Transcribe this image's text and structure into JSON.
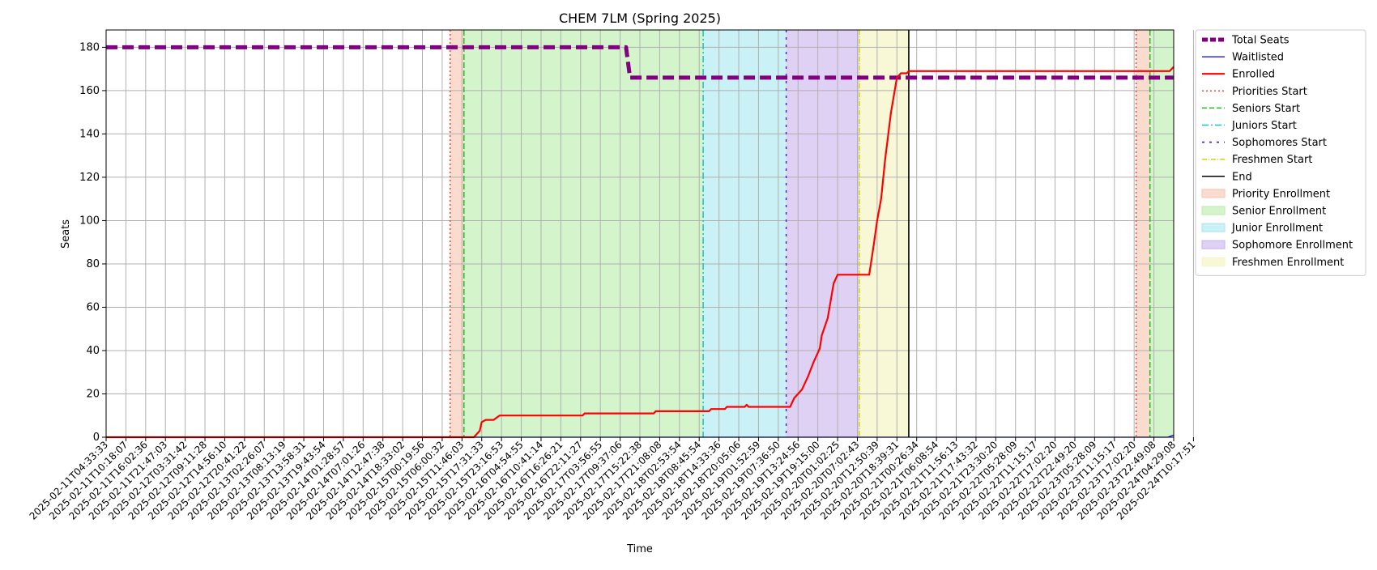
{
  "chart_data": {
    "type": "line",
    "title": "CHEM 7LM (Spring 2025)",
    "xlabel": "Time",
    "ylabel": "Seats",
    "ylim": [
      0,
      188
    ],
    "yticks": [
      0,
      20,
      40,
      60,
      80,
      100,
      120,
      140,
      160,
      180
    ],
    "grid": true,
    "legend_position": "outside-right",
    "x_tick_labels": [
      "2025-02-11T04:33:33",
      "2025-02-11T10:18:07",
      "2025-02-11T16:02:36",
      "2025-02-11T21:47:03",
      "2025-02-12T03:31:42",
      "2025-02-12T09:11:28",
      "2025-02-12T14:56:10",
      "2025-02-12T20:41:22",
      "2025-02-13T02:26:07",
      "2025-02-13T08:13:19",
      "2025-02-13T13:58:31",
      "2025-02-13T19:43:54",
      "2025-02-14T01:28:57",
      "2025-02-14T07:01:26",
      "2025-02-14T12:47:38",
      "2025-02-14T18:33:02",
      "2025-02-15T00:19:56",
      "2025-02-15T06:00:32",
      "2025-02-15T11:46:03",
      "2025-02-15T17:31:33",
      "2025-02-15T23:16:53",
      "2025-02-16T04:54:55",
      "2025-02-16T10:41:14",
      "2025-02-16T16:26:21",
      "2025-02-16T22:11:27",
      "2025-02-17T03:56:55",
      "2025-02-17T09:37:06",
      "2025-02-17T15:22:38",
      "2025-02-17T21:08:08",
      "2025-02-18T02:53:54",
      "2025-02-18T08:45:54",
      "2025-02-18T14:33:36",
      "2025-02-18T20:05:06",
      "2025-02-19T01:52:59",
      "2025-02-19T07:36:50",
      "2025-02-19T13:24:56",
      "2025-02-19T19:15:00",
      "2025-02-20T01:02:25",
      "2025-02-20T07:02:43",
      "2025-02-20T12:50:39",
      "2025-02-20T18:39:31",
      "2025-02-21T00:26:34",
      "2025-02-21T06:08:54",
      "2025-02-21T11:56:13",
      "2025-02-21T17:43:32",
      "2025-02-21T23:30:20",
      "2025-02-22T05:28:09",
      "2025-02-22T11:15:17",
      "2025-02-22T17:02:20",
      "2025-02-22T22:49:20",
      "2025-02-23T05:28:09",
      "2025-02-23T11:15:17",
      "2025-02-23T17:02:20",
      "2025-02-23T22:49:08",
      "2025-02-24T04:29:08",
      "2025-02-24T10:17:51"
    ],
    "series": [
      {
        "name": "Total Seats",
        "style": "dashed-thick",
        "color": "#800080",
        "points": [
          [
            0,
            180
          ],
          [
            26.3,
            180
          ],
          [
            26.5,
            166
          ],
          [
            54,
            166
          ]
        ]
      },
      {
        "name": "Waitlisted",
        "style": "solid-thin",
        "color": "#0000ff",
        "points": [
          [
            0,
            0
          ],
          [
            53.7,
            0
          ],
          [
            54,
            1
          ]
        ]
      },
      {
        "name": "Enrolled",
        "style": "solid",
        "color": "#ff0000",
        "points": [
          [
            0,
            0
          ],
          [
            18.6,
            0
          ],
          [
            18.9,
            3
          ],
          [
            19.0,
            7
          ],
          [
            19.2,
            8
          ],
          [
            19.6,
            8
          ],
          [
            19.9,
            10
          ],
          [
            24.1,
            10
          ],
          [
            24.2,
            11
          ],
          [
            27.7,
            11
          ],
          [
            27.8,
            12
          ],
          [
            30.5,
            12
          ],
          [
            30.6,
            13
          ],
          [
            31.3,
            13
          ],
          [
            31.4,
            14
          ],
          [
            32.3,
            14
          ],
          [
            32.4,
            15
          ],
          [
            32.5,
            14
          ],
          [
            34.6,
            14
          ],
          [
            34.8,
            18
          ],
          [
            35.2,
            22
          ],
          [
            35.5,
            28
          ],
          [
            35.8,
            35
          ],
          [
            36.1,
            41
          ],
          [
            36.2,
            47
          ],
          [
            36.5,
            55
          ],
          [
            36.8,
            71
          ],
          [
            37.0,
            75
          ],
          [
            38.6,
            75
          ],
          [
            38.8,
            87
          ],
          [
            39.0,
            100
          ],
          [
            39.2,
            110
          ],
          [
            39.4,
            128
          ],
          [
            39.7,
            150
          ],
          [
            40.0,
            166
          ],
          [
            40.2,
            168
          ],
          [
            40.5,
            168
          ],
          [
            40.6,
            169
          ],
          [
            53.8,
            169
          ],
          [
            54,
            171
          ]
        ]
      }
    ],
    "markers": [
      {
        "name": "Priorities Start",
        "x": 17.4,
        "color": "#ff3b30",
        "dash": "2,3"
      },
      {
        "name": "Seniors Start",
        "x": 18.1,
        "color": "#22bb22",
        "dash": "7,3"
      },
      {
        "name": "Juniors Start",
        "x": 30.2,
        "color": "#17c1c9",
        "dash": "8,3,2,3"
      },
      {
        "name": "Sophomores Start",
        "x": 34.4,
        "color": "#5b1bd6",
        "dash": "3,6"
      },
      {
        "name": "Freshmen Start",
        "x": 38.1,
        "color": "#d6d600",
        "dash": "6,2,1,2"
      },
      {
        "name": "End",
        "x": 40.6,
        "color": "#000000",
        "dash": ""
      },
      {
        "name": "Priorities Start",
        "x": 52.1,
        "color": "#ff3b30",
        "dash": "2,3"
      },
      {
        "name": "Seniors Start",
        "x": 52.8,
        "color": "#22bb22",
        "dash": "7,3"
      }
    ],
    "regions": [
      {
        "name": "Priority Enrollment",
        "x0": 17.4,
        "x1": 18.1,
        "color": "#f6c4ad"
      },
      {
        "name": "Senior Enrollment",
        "x0": 18.1,
        "x1": 30.2,
        "color": "#b8ecaa"
      },
      {
        "name": "Junior Enrollment",
        "x0": 30.2,
        "x1": 34.4,
        "color": "#a7e7ee"
      },
      {
        "name": "Sophomore Enrollment",
        "x0": 34.4,
        "x1": 38.1,
        "color": "#c8b2ec"
      },
      {
        "name": "Freshmen Enrollment",
        "x0": 38.1,
        "x1": 40.6,
        "color": "#f4f4bd"
      },
      {
        "name": "Priority Enrollment",
        "x0": 52.1,
        "x1": 52.8,
        "color": "#f6c4ad"
      },
      {
        "name": "Senior Enrollment",
        "x0": 52.8,
        "x1": 54,
        "color": "#b8ecaa"
      }
    ],
    "legend": [
      {
        "label": "Total Seats",
        "kind": "line",
        "color": "#800080",
        "width": 5,
        "dash": "7,3"
      },
      {
        "label": "Waitlisted",
        "kind": "line",
        "color": "#0000ff",
        "width": 1.2,
        "dash": ""
      },
      {
        "label": "Enrolled",
        "kind": "line",
        "color": "#ff0000",
        "width": 2.2,
        "dash": ""
      },
      {
        "label": "Priorities Start",
        "kind": "line",
        "color": "#ff3b30",
        "width": 1.5,
        "dash": "2,3"
      },
      {
        "label": "Seniors Start",
        "kind": "line",
        "color": "#22bb22",
        "width": 1.5,
        "dash": "6,3"
      },
      {
        "label": "Juniors Start",
        "kind": "line",
        "color": "#17c1c9",
        "width": 1.5,
        "dash": "8,3,2,3"
      },
      {
        "label": "Sophomores Start",
        "kind": "line",
        "color": "#5b1bd6",
        "width": 1.8,
        "dash": "3,6"
      },
      {
        "label": "Freshmen Start",
        "kind": "line",
        "color": "#d6d600",
        "width": 1.5,
        "dash": "6,2,1,2"
      },
      {
        "label": "End",
        "kind": "line",
        "color": "#000000",
        "width": 1.5,
        "dash": ""
      },
      {
        "label": "Priority Enrollment",
        "kind": "patch",
        "color": "#f6c4ad"
      },
      {
        "label": "Senior Enrollment",
        "kind": "patch",
        "color": "#b8ecaa"
      },
      {
        "label": "Junior Enrollment",
        "kind": "patch",
        "color": "#a7e7ee"
      },
      {
        "label": "Sophomore Enrollment",
        "kind": "patch",
        "color": "#c8b2ec"
      },
      {
        "label": "Freshmen Enrollment",
        "kind": "patch",
        "color": "#f4f4bd"
      }
    ]
  }
}
